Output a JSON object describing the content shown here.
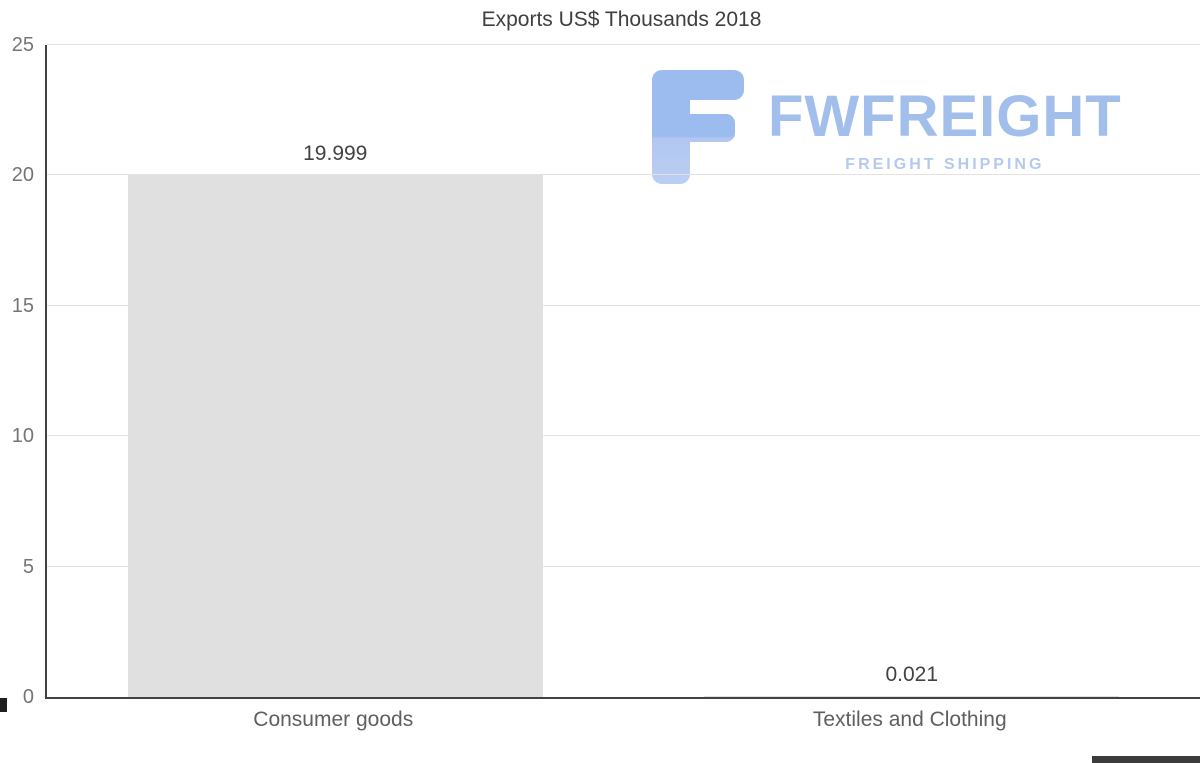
{
  "chart_data": {
    "type": "bar",
    "title": "Exports US$ Thousands 2018",
    "categories": [
      "Consumer goods",
      "Textiles and Clothing"
    ],
    "values": [
      19.999,
      0.021
    ],
    "value_labels": [
      "19.999",
      "0.021"
    ],
    "ylim": [
      0,
      25
    ],
    "yticks": [
      0,
      5,
      10,
      15,
      20,
      25
    ],
    "xlabel": "",
    "ylabel": "",
    "grid": "horizontal",
    "legend": "none",
    "bar_color": "#e0e0e0",
    "axis_color": "#424242",
    "grid_color": "#e3e3e3",
    "tick_label_color": "#757575",
    "category_label_color": "#5f5f5f",
    "value_label_color": "#424242"
  },
  "watermark": {
    "brand": "FWFREIGHT",
    "tagline": "FREIGHT SHIPPING",
    "brand_color": "#a2beeb",
    "tagline_color": "#b4c9f0",
    "icon": "fwfreight-logo-icon",
    "icon_color_top": "#9cbbee",
    "icon_color_bottom": "#bbcef3"
  }
}
